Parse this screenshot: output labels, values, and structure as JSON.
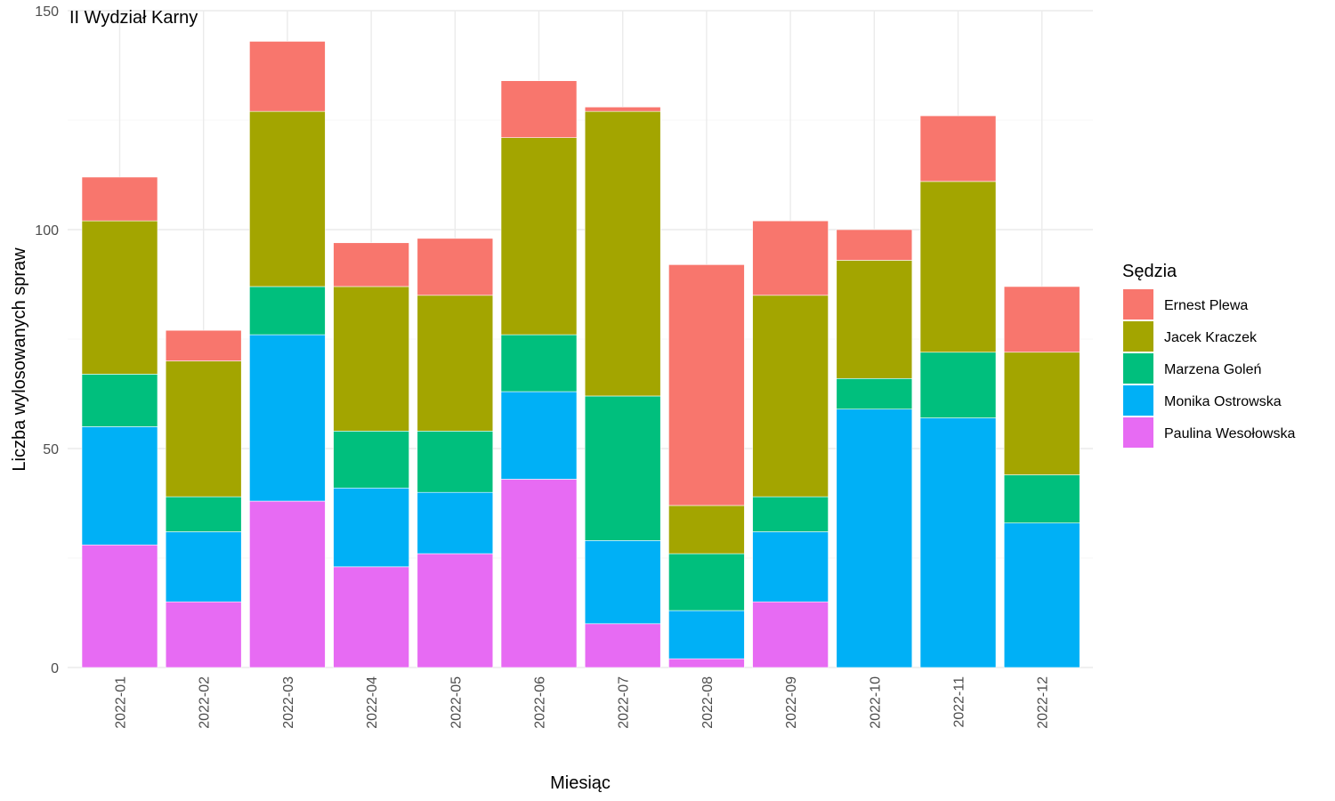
{
  "chart_data": {
    "type": "bar",
    "stacked": true,
    "title": "II Wydział Karny",
    "xlabel": "Miesiąc",
    "ylabel": "Liczba wylosowanych spraw",
    "ylim": [
      0,
      150
    ],
    "yticks": [
      0,
      50,
      100,
      150
    ],
    "grid": true,
    "legend_title": "Sędzia",
    "legend_position": "right",
    "categories": [
      "2022-01",
      "2022-02",
      "2022-03",
      "2022-04",
      "2022-05",
      "2022-06",
      "2022-07",
      "2022-08",
      "2022-09",
      "2022-10",
      "2022-11",
      "2022-12"
    ],
    "series": [
      {
        "name": "Paulina Wesołowska",
        "color": "#E76BF3",
        "values": [
          28,
          15,
          38,
          23,
          26,
          43,
          10,
          2,
          15,
          0,
          0,
          0
        ]
      },
      {
        "name": "Monika Ostrowska",
        "color": "#00B0F6",
        "values": [
          27,
          16,
          38,
          18,
          14,
          20,
          19,
          11,
          16,
          59,
          57,
          33
        ]
      },
      {
        "name": "Marzena Goleń",
        "color": "#00BF7D",
        "values": [
          12,
          8,
          11,
          13,
          14,
          13,
          33,
          13,
          8,
          7,
          15,
          11
        ]
      },
      {
        "name": "Jacek Kraczek",
        "color": "#A3A500",
        "values": [
          35,
          31,
          40,
          33,
          31,
          45,
          65,
          11,
          46,
          27,
          39,
          28
        ]
      },
      {
        "name": "Ernest Plewa",
        "color": "#F8766D",
        "values": [
          10,
          7,
          16,
          10,
          13,
          13,
          1,
          55,
          17,
          7,
          15,
          15
        ]
      }
    ],
    "legend_order": [
      "Ernest Plewa",
      "Jacek Kraczek",
      "Marzena Goleń",
      "Monika Ostrowska",
      "Paulina Wesołowska"
    ]
  }
}
